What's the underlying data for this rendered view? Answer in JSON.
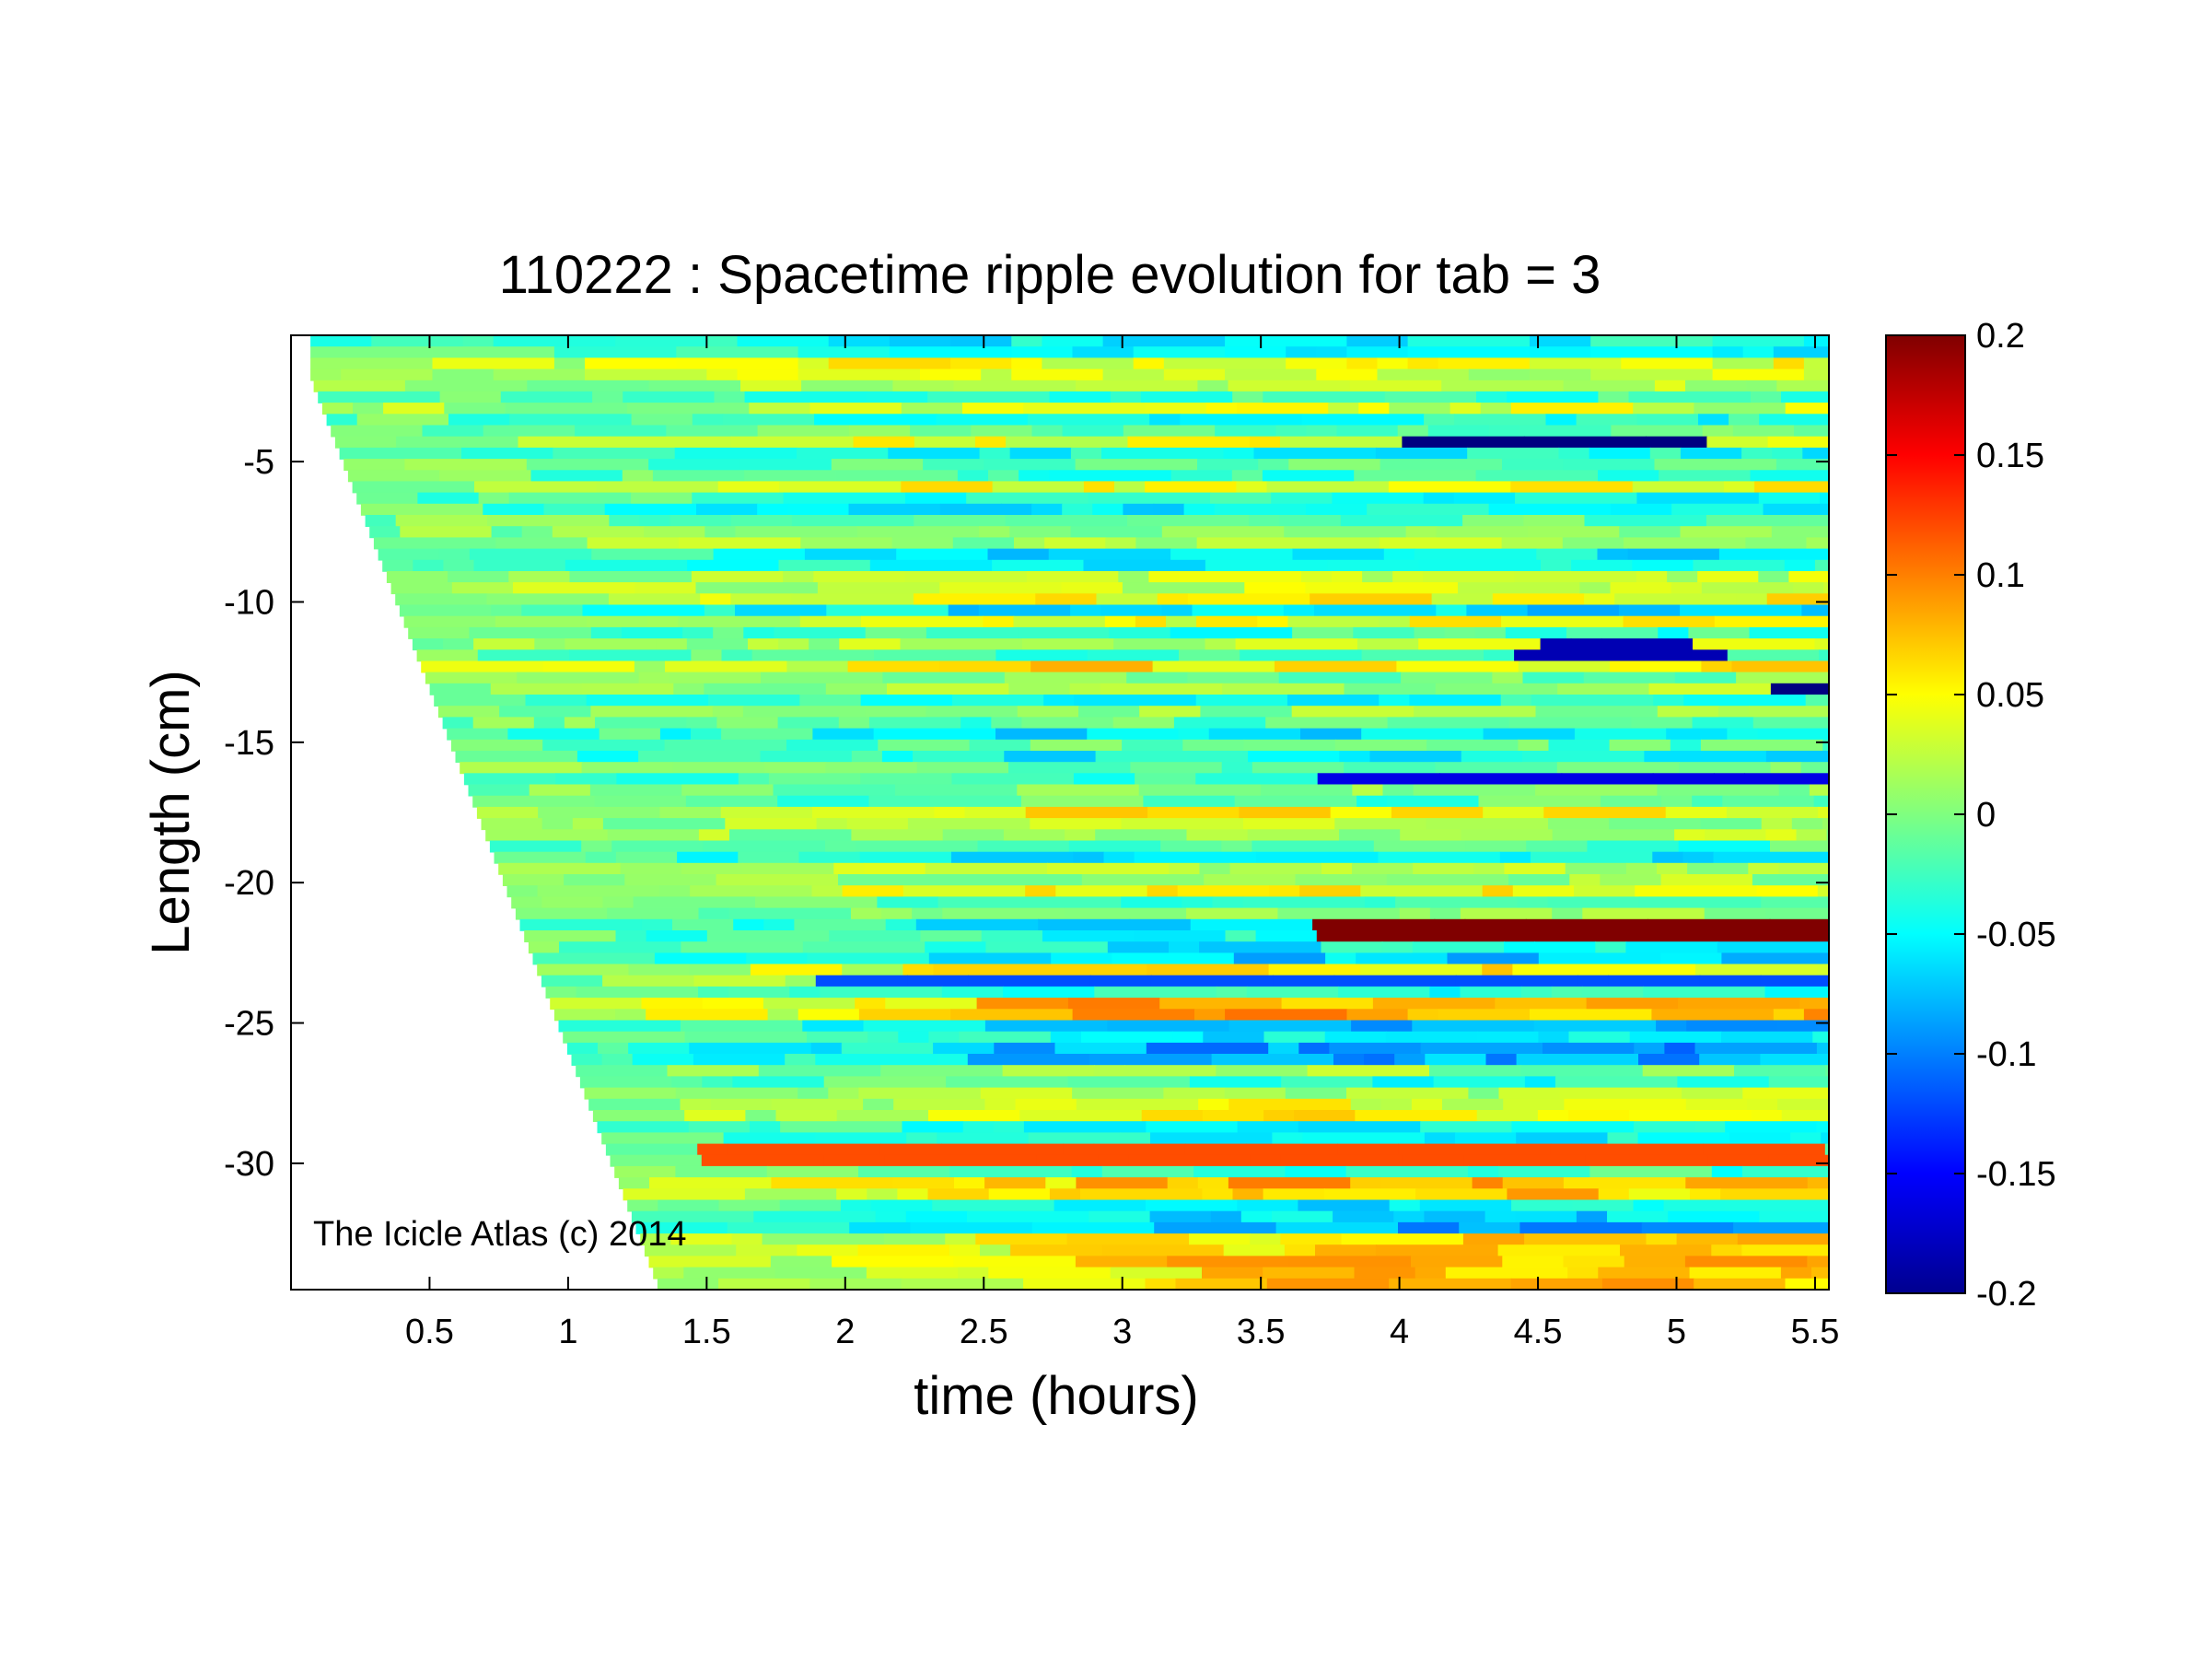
{
  "chart_data": {
    "type": "heatmap",
    "title": "110222 : Spacetime ripple evolution for tab = 3",
    "xlabel": "time (hours)",
    "ylabel": "Length (cm)",
    "xlim": [
      0,
      5.55
    ],
    "ylim": [
      -34.5,
      -0.5
    ],
    "x_ticks": [
      0.5,
      1,
      1.5,
      2,
      2.5,
      3,
      3.5,
      4,
      4.5,
      5,
      5.5
    ],
    "x_tick_labels": [
      "0.5",
      "1",
      "1.5",
      "2",
      "2.5",
      "3",
      "3.5",
      "4",
      "4.5",
      "5",
      "5.5"
    ],
    "y_ticks": [
      -5,
      -10,
      -15,
      -20,
      -25,
      -30
    ],
    "y_tick_labels": [
      "-5",
      "-10",
      "-15",
      "-20",
      "-25",
      "-30"
    ],
    "colorbar": {
      "colormap": "jet",
      "clim": [
        -0.2,
        0.2
      ],
      "ticks": [
        0.2,
        0.15,
        0.1,
        0.05,
        0,
        -0.05,
        -0.1,
        -0.15,
        -0.2
      ],
      "tick_labels": [
        "0.2",
        "0.15",
        "0.1",
        "0.05",
        "0",
        "-0.05",
        "-0.1",
        "-0.15",
        "-0.2"
      ]
    },
    "growth_front": [
      [
        0.07,
        -2.0
      ],
      [
        1.33,
        -34.5
      ]
    ],
    "dominant_bands": [
      {
        "y": -21.6,
        "x_start": 3.6,
        "x_end": 5.55,
        "value": 0.2
      },
      {
        "y": -4.3,
        "x_start": 4.0,
        "x_end": 5.0,
        "value": -0.2
      },
      {
        "y": -13.4,
        "x_start": 5.3,
        "x_end": 5.55,
        "value": -0.2
      },
      {
        "y": -16.3,
        "x_start": 3.6,
        "x_end": 5.55,
        "value": -0.16
      },
      {
        "y": -11.8,
        "x_start": 4.5,
        "x_end": 5.1,
        "value": -0.18
      },
      {
        "y": -29.7,
        "x_start": 1.4,
        "x_end": 5.55,
        "value": 0.12
      },
      {
        "y": -23.5,
        "x_start": 1.9,
        "x_end": 5.55,
        "value": -0.12
      }
    ]
  },
  "watermark": "The Icicle Atlas (c) 2014"
}
